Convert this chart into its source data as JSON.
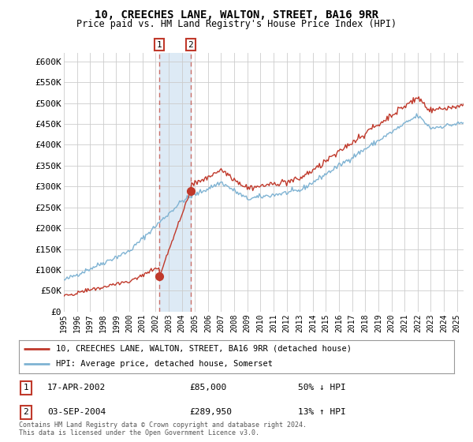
{
  "title": "10, CREECHES LANE, WALTON, STREET, BA16 9RR",
  "subtitle": "Price paid vs. HM Land Registry's House Price Index (HPI)",
  "legend_line1": "10, CREECHES LANE, WALTON, STREET, BA16 9RR (detached house)",
  "legend_line2": "HPI: Average price, detached house, Somerset",
  "footnote": "Contains HM Land Registry data © Crown copyright and database right 2024.\nThis data is licensed under the Open Government Licence v3.0.",
  "transaction1_date": "17-APR-2002",
  "transaction1_price": "£85,000",
  "transaction1_hpi": "50% ↓ HPI",
  "transaction1_year": 2002.29,
  "transaction1_value": 85000,
  "transaction2_date": "03-SEP-2004",
  "transaction2_price": "£289,950",
  "transaction2_hpi": "13% ↑ HPI",
  "transaction2_year": 2004.67,
  "transaction2_value": 289950,
  "hpi_color": "#7fb3d3",
  "price_color": "#c0392b",
  "marker_color": "#c0392b",
  "transaction_box_color": "#c0392b",
  "shade_color": "#ddeaf5",
  "ylim": [
    0,
    620000
  ],
  "yticks": [
    0,
    50000,
    100000,
    150000,
    200000,
    250000,
    300000,
    350000,
    400000,
    450000,
    500000,
    550000,
    600000
  ],
  "xlim_start": 1995.0,
  "xlim_end": 2025.5,
  "xtick_years": [
    1995,
    1996,
    1997,
    1998,
    1999,
    2000,
    2001,
    2002,
    2003,
    2004,
    2005,
    2006,
    2007,
    2008,
    2009,
    2010,
    2011,
    2012,
    2013,
    2014,
    2015,
    2016,
    2017,
    2018,
    2019,
    2020,
    2021,
    2022,
    2023,
    2024,
    2025
  ],
  "shade_x1": 2002.29,
  "shade_x2": 2004.67,
  "bg_color": "#ffffff",
  "grid_color": "#cccccc",
  "plot_bg_color": "#ffffff"
}
